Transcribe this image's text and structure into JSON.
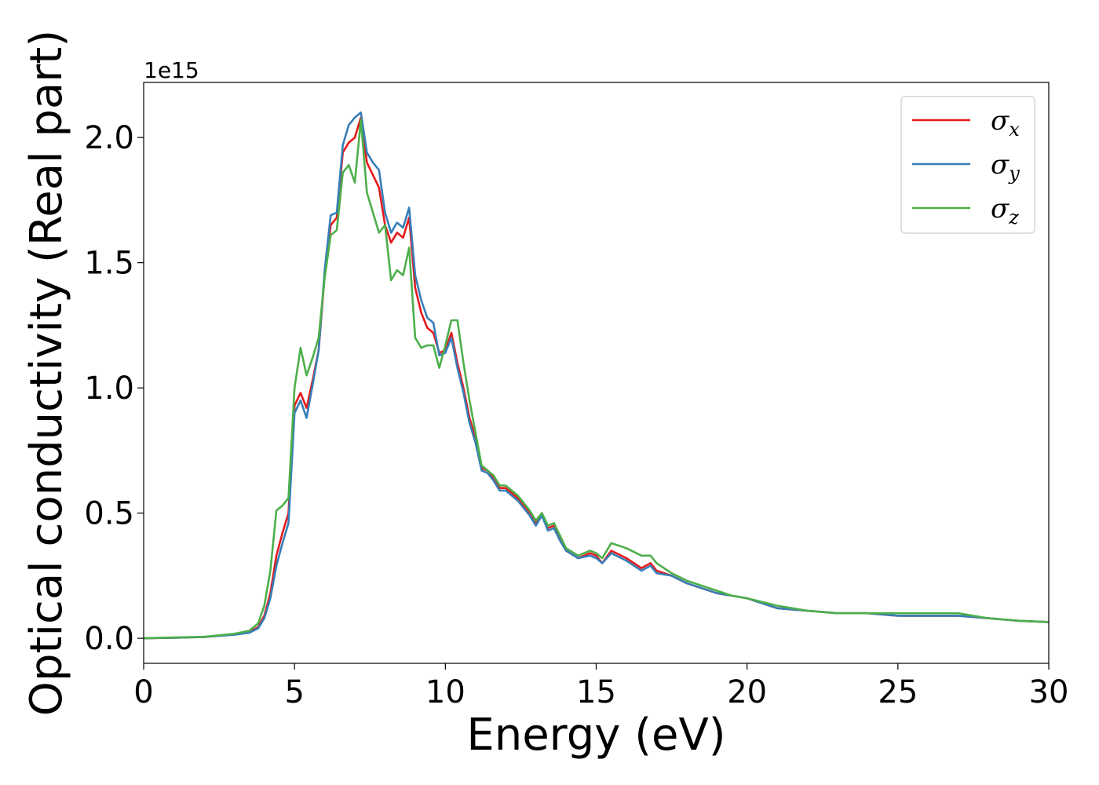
{
  "chart_data": {
    "type": "line",
    "title": "",
    "xlabel": "Energy (eV)",
    "ylabel": "Optical conductivity (Real part)",
    "offset_text": "1e15",
    "xlim": [
      0,
      30
    ],
    "ylim": [
      -0.1,
      2.22
    ],
    "xticks": [
      0,
      5,
      10,
      15,
      20,
      25,
      30
    ],
    "xtick_labels": [
      "0",
      "5",
      "10",
      "15",
      "20",
      "25",
      "30"
    ],
    "yticks": [
      0.0,
      0.5,
      1.0,
      1.5,
      2.0
    ],
    "ytick_labels": [
      "0.0",
      "0.5",
      "1.0",
      "1.5",
      "2.0"
    ],
    "grid": false,
    "legend_position": "top-right",
    "series": [
      {
        "name": "σx",
        "legend_base": "σ",
        "legend_sub": "x",
        "color": "#e41a1c",
        "x": [
          0,
          1,
          2,
          3,
          3.5,
          3.8,
          4.0,
          4.2,
          4.4,
          4.6,
          4.8,
          5.0,
          5.2,
          5.4,
          5.6,
          5.8,
          6.0,
          6.2,
          6.4,
          6.6,
          6.8,
          7.0,
          7.2,
          7.4,
          7.6,
          7.8,
          8.0,
          8.2,
          8.4,
          8.6,
          8.8,
          9.0,
          9.2,
          9.4,
          9.6,
          9.8,
          10.0,
          10.2,
          10.4,
          10.6,
          10.8,
          11.0,
          11.2,
          11.4,
          11.6,
          11.8,
          12.0,
          12.4,
          12.8,
          13.0,
          13.2,
          13.4,
          13.6,
          13.8,
          14.0,
          14.4,
          14.8,
          15.0,
          15.2,
          15.5,
          16.0,
          16.5,
          16.8,
          17.0,
          17.5,
          18.0,
          18.5,
          19.0,
          19.5,
          20.0,
          21.0,
          22.0,
          23.0,
          24.0,
          25.0,
          26.0,
          27.0,
          28.0,
          29.0,
          30.0
        ],
        "y": [
          0.0,
          0.002,
          0.005,
          0.015,
          0.025,
          0.045,
          0.09,
          0.18,
          0.33,
          0.42,
          0.5,
          0.93,
          0.98,
          0.92,
          1.03,
          1.15,
          1.45,
          1.65,
          1.68,
          1.94,
          1.98,
          2.0,
          2.08,
          1.9,
          1.85,
          1.8,
          1.65,
          1.58,
          1.62,
          1.6,
          1.68,
          1.4,
          1.3,
          1.24,
          1.22,
          1.14,
          1.15,
          1.22,
          1.1,
          1.0,
          0.88,
          0.8,
          0.68,
          0.67,
          0.64,
          0.6,
          0.6,
          0.56,
          0.5,
          0.46,
          0.5,
          0.44,
          0.45,
          0.4,
          0.35,
          0.32,
          0.34,
          0.33,
          0.3,
          0.35,
          0.32,
          0.28,
          0.3,
          0.27,
          0.25,
          0.22,
          0.2,
          0.18,
          0.17,
          0.16,
          0.12,
          0.11,
          0.1,
          0.1,
          0.09,
          0.09,
          0.09,
          0.08,
          0.07,
          0.065
        ]
      },
      {
        "name": "σy",
        "legend_base": "σ",
        "legend_sub": "y",
        "color": "#377eb8",
        "x": [
          0,
          1,
          2,
          3,
          3.5,
          3.8,
          4.0,
          4.2,
          4.4,
          4.6,
          4.8,
          5.0,
          5.2,
          5.4,
          5.6,
          5.8,
          6.0,
          6.2,
          6.4,
          6.6,
          6.8,
          7.0,
          7.2,
          7.4,
          7.6,
          7.8,
          8.0,
          8.2,
          8.4,
          8.6,
          8.8,
          9.0,
          9.2,
          9.4,
          9.6,
          9.8,
          10.0,
          10.2,
          10.4,
          10.6,
          10.8,
          11.0,
          11.2,
          11.4,
          11.6,
          11.8,
          12.0,
          12.4,
          12.8,
          13.0,
          13.2,
          13.4,
          13.6,
          13.8,
          14.0,
          14.4,
          14.8,
          15.0,
          15.2,
          15.5,
          16.0,
          16.5,
          16.8,
          17.0,
          17.5,
          18.0,
          18.5,
          19.0,
          19.5,
          20.0,
          21.0,
          22.0,
          23.0,
          24.0,
          25.0,
          26.0,
          27.0,
          28.0,
          29.0,
          30.0
        ],
        "y": [
          0.0,
          0.002,
          0.005,
          0.014,
          0.022,
          0.04,
          0.08,
          0.16,
          0.29,
          0.38,
          0.46,
          0.9,
          0.95,
          0.88,
          1.01,
          1.15,
          1.47,
          1.69,
          1.7,
          1.97,
          2.05,
          2.08,
          2.1,
          1.94,
          1.9,
          1.87,
          1.7,
          1.62,
          1.66,
          1.64,
          1.72,
          1.45,
          1.35,
          1.28,
          1.26,
          1.13,
          1.14,
          1.2,
          1.08,
          0.98,
          0.86,
          0.78,
          0.67,
          0.66,
          0.63,
          0.59,
          0.59,
          0.55,
          0.49,
          0.45,
          0.49,
          0.43,
          0.44,
          0.39,
          0.35,
          0.32,
          0.33,
          0.32,
          0.3,
          0.34,
          0.31,
          0.27,
          0.29,
          0.26,
          0.25,
          0.22,
          0.2,
          0.18,
          0.17,
          0.16,
          0.12,
          0.11,
          0.1,
          0.1,
          0.09,
          0.09,
          0.09,
          0.08,
          0.07,
          0.065
        ]
      },
      {
        "name": "σz",
        "legend_base": "σ",
        "legend_sub": "z",
        "color": "#4daf4a",
        "x": [
          0,
          1,
          2,
          3,
          3.5,
          3.8,
          4.0,
          4.2,
          4.4,
          4.6,
          4.8,
          5.0,
          5.2,
          5.4,
          5.6,
          5.8,
          6.0,
          6.2,
          6.4,
          6.6,
          6.8,
          7.0,
          7.2,
          7.4,
          7.6,
          7.8,
          8.0,
          8.2,
          8.4,
          8.6,
          8.8,
          9.0,
          9.2,
          9.4,
          9.6,
          9.8,
          10.0,
          10.2,
          10.4,
          10.6,
          10.8,
          11.0,
          11.2,
          11.4,
          11.6,
          11.8,
          12.0,
          12.4,
          12.8,
          13.0,
          13.2,
          13.4,
          13.6,
          13.8,
          14.0,
          14.4,
          14.8,
          15.0,
          15.2,
          15.5,
          16.0,
          16.5,
          16.8,
          17.0,
          17.5,
          18.0,
          18.5,
          19.0,
          19.5,
          20.0,
          21.0,
          22.0,
          23.0,
          24.0,
          25.0,
          26.0,
          27.0,
          28.0,
          29.0,
          30.0
        ],
        "y": [
          0.0,
          0.003,
          0.006,
          0.018,
          0.03,
          0.06,
          0.13,
          0.27,
          0.51,
          0.53,
          0.56,
          1.0,
          1.16,
          1.05,
          1.12,
          1.2,
          1.44,
          1.61,
          1.63,
          1.86,
          1.89,
          1.82,
          2.07,
          1.78,
          1.7,
          1.62,
          1.65,
          1.43,
          1.47,
          1.45,
          1.56,
          1.2,
          1.16,
          1.17,
          1.17,
          1.08,
          1.17,
          1.27,
          1.27,
          1.1,
          0.95,
          0.82,
          0.69,
          0.67,
          0.65,
          0.61,
          0.61,
          0.57,
          0.51,
          0.47,
          0.5,
          0.45,
          0.46,
          0.41,
          0.36,
          0.33,
          0.35,
          0.34,
          0.32,
          0.38,
          0.36,
          0.33,
          0.33,
          0.3,
          0.26,
          0.23,
          0.21,
          0.19,
          0.17,
          0.16,
          0.13,
          0.11,
          0.1,
          0.1,
          0.1,
          0.1,
          0.1,
          0.08,
          0.07,
          0.065
        ]
      }
    ]
  }
}
